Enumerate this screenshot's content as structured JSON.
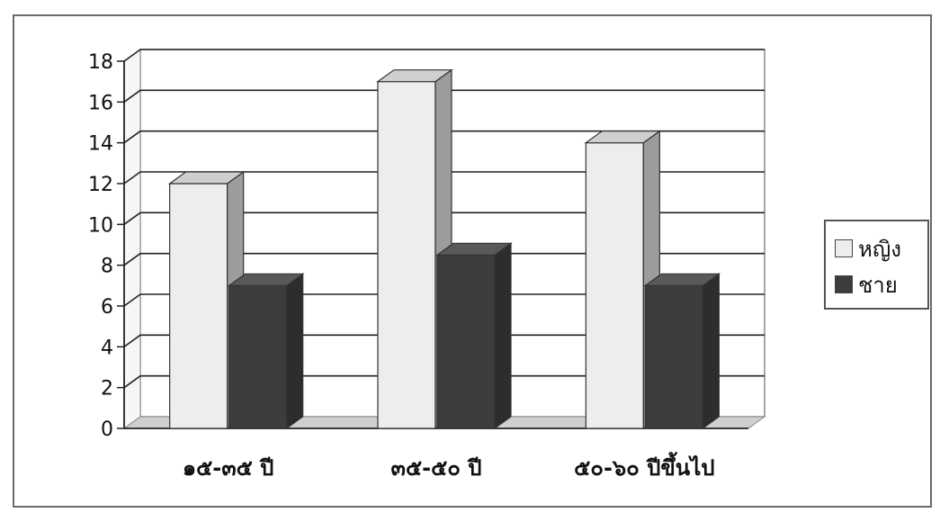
{
  "chart_data": {
    "type": "bar",
    "categories": [
      "๑๕-๓๕ ปี",
      "๓๕-๕๐ ปี",
      "๕๐-๖๐ ปีขึ้นไป"
    ],
    "series": [
      {
        "name": "หญิง",
        "values": [
          12,
          17,
          14
        ],
        "color": "#ededed"
      },
      {
        "name": "ชาย",
        "values": [
          7,
          8.5,
          7
        ],
        "color": "#3c3c3c"
      }
    ],
    "yticks": [
      "0",
      "2",
      "4",
      "6",
      "8",
      "10",
      "12",
      "14",
      "16",
      "18"
    ],
    "ylim": [
      0,
      18
    ],
    "grid": true,
    "style": "3d",
    "legend_position": "right"
  }
}
